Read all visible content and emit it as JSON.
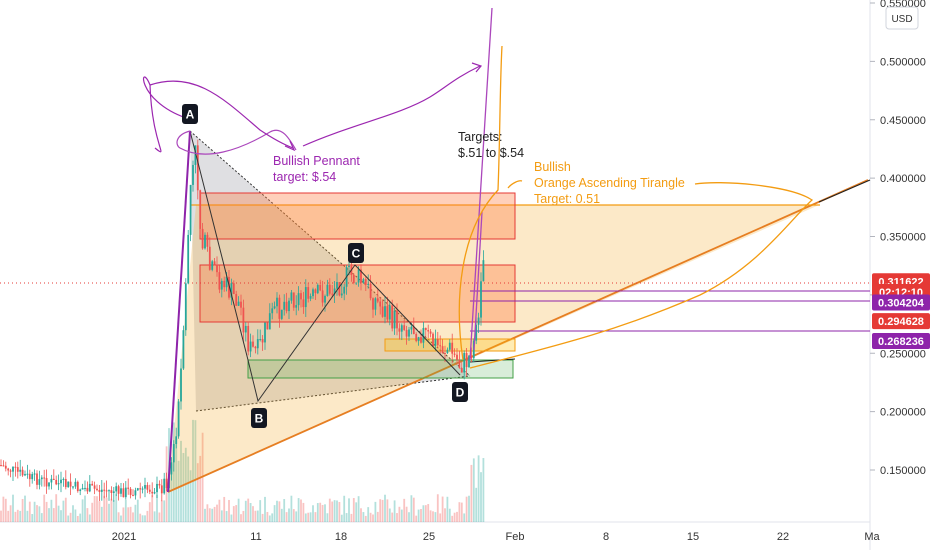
{
  "chart_data": {
    "type": "candlestick",
    "currency_label": "USD",
    "y_axis": {
      "ticks": [
        "0.550000",
        "0.500000",
        "0.450000",
        "0.400000",
        "0.350000",
        "0.300000",
        "0.250000",
        "0.200000",
        "0.150000"
      ],
      "ylim": [
        0.105,
        0.555
      ]
    },
    "x_axis": {
      "ticks": [
        "2021",
        "11",
        "18",
        "25",
        "Feb",
        "8",
        "15",
        "22",
        "Ma"
      ]
    },
    "price_badges": [
      {
        "label": "0.311622",
        "value": 0.311622,
        "color": "#e53935"
      },
      {
        "label": "02:12:10",
        "value": 0.3025,
        "color": "#e53935"
      },
      {
        "label": "0.304204",
        "value": 0.2935,
        "color": "#8e24aa"
      },
      {
        "label": "0.294628",
        "value": 0.2775,
        "color": "#e53935"
      },
      {
        "label": "0.268236",
        "value": 0.2605,
        "color": "#8e24aa"
      }
    ],
    "pattern_points": [
      {
        "label": "A",
        "date": "2021-01-06",
        "price": 0.44
      },
      {
        "label": "B",
        "date": "2021-01-11",
        "price": 0.205
      },
      {
        "label": "C",
        "date": "2021-01-20",
        "price": 0.315
      },
      {
        "label": "D",
        "date": "2021-01-28",
        "price": 0.23
      }
    ],
    "annotations": {
      "pennant_line1": "Bullish Pennant",
      "pennant_line2": "target: $.54",
      "targets_line1": "Targets:",
      "targets_line2": "$.51 to $.54",
      "orange_line1": "Bullish",
      "orange_line2": "Orange Ascending Tirangle",
      "orange_line3": "Target: 0.51"
    },
    "colors": {
      "up": "#26a69a",
      "down": "#ef5350",
      "purple": "#9c27b0",
      "orange": "#f39c12",
      "green_zone": "#43a047"
    }
  }
}
